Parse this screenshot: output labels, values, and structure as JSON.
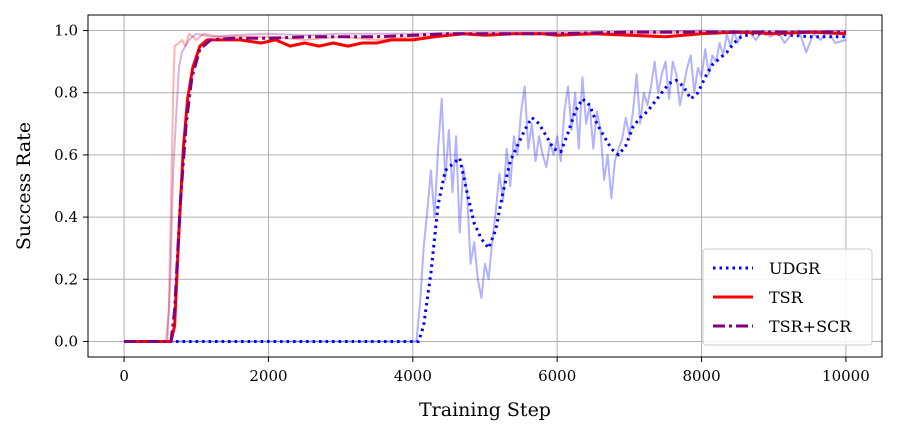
{
  "chart_data": {
    "type": "line",
    "title": "",
    "xlabel": "Training Step",
    "ylabel": "Success Rate",
    "xlim": [
      -500,
      10500
    ],
    "ylim": [
      -0.05,
      1.05
    ],
    "xticks": [
      0,
      2000,
      4000,
      6000,
      8000,
      10000
    ],
    "xtick_labels": [
      "0",
      "2000",
      "4000",
      "6000",
      "8000",
      "10000"
    ],
    "yticks": [
      0.0,
      0.2,
      0.4,
      0.6,
      0.8,
      1.0
    ],
    "ytick_labels": [
      "0.0",
      "0.2",
      "0.4",
      "0.6",
      "0.8",
      "1.0"
    ],
    "grid": true,
    "legend_position": "lower-right",
    "series": [
      {
        "name": "UDGR",
        "color": "#0000ff",
        "style": "dotted",
        "smoothed": [
          [
            0,
            0
          ],
          [
            4000,
            0
          ],
          [
            4080,
            0
          ],
          [
            4150,
            0.05
          ],
          [
            4250,
            0.22
          ],
          [
            4350,
            0.44
          ],
          [
            4450,
            0.55
          ],
          [
            4550,
            0.57
          ],
          [
            4650,
            0.59
          ],
          [
            4750,
            0.48
          ],
          [
            4850,
            0.38
          ],
          [
            4950,
            0.33
          ],
          [
            5050,
            0.3
          ],
          [
            5150,
            0.36
          ],
          [
            5250,
            0.48
          ],
          [
            5350,
            0.58
          ],
          [
            5450,
            0.63
          ],
          [
            5550,
            0.68
          ],
          [
            5650,
            0.72
          ],
          [
            5750,
            0.7
          ],
          [
            5850,
            0.66
          ],
          [
            5950,
            0.62
          ],
          [
            6050,
            0.61
          ],
          [
            6150,
            0.67
          ],
          [
            6250,
            0.74
          ],
          [
            6350,
            0.78
          ],
          [
            6450,
            0.76
          ],
          [
            6550,
            0.7
          ],
          [
            6650,
            0.66
          ],
          [
            6750,
            0.62
          ],
          [
            6850,
            0.6
          ],
          [
            6950,
            0.63
          ],
          [
            7050,
            0.69
          ],
          [
            7150,
            0.72
          ],
          [
            7250,
            0.74
          ],
          [
            7350,
            0.77
          ],
          [
            7450,
            0.8
          ],
          [
            7550,
            0.83
          ],
          [
            7650,
            0.84
          ],
          [
            7750,
            0.82
          ],
          [
            7850,
            0.78
          ],
          [
            7950,
            0.8
          ],
          [
            8050,
            0.85
          ],
          [
            8150,
            0.89
          ],
          [
            8250,
            0.91
          ],
          [
            8350,
            0.93
          ],
          [
            8450,
            0.96
          ],
          [
            8550,
            0.98
          ],
          [
            8700,
            0.99
          ],
          [
            9000,
            0.99
          ],
          [
            9500,
            0.98
          ],
          [
            10000,
            0.98
          ]
        ],
        "raw": [
          [
            0,
            0
          ],
          [
            4050,
            0
          ],
          [
            4100,
            0.12
          ],
          [
            4150,
            0.3
          ],
          [
            4200,
            0.42
          ],
          [
            4250,
            0.55
          ],
          [
            4300,
            0.4
          ],
          [
            4350,
            0.62
          ],
          [
            4400,
            0.78
          ],
          [
            4450,
            0.52
          ],
          [
            4500,
            0.68
          ],
          [
            4550,
            0.48
          ],
          [
            4600,
            0.66
          ],
          [
            4650,
            0.35
          ],
          [
            4700,
            0.56
          ],
          [
            4750,
            0.48
          ],
          [
            4800,
            0.25
          ],
          [
            4850,
            0.32
          ],
          [
            4900,
            0.2
          ],
          [
            4950,
            0.14
          ],
          [
            5000,
            0.25
          ],
          [
            5050,
            0.2
          ],
          [
            5100,
            0.32
          ],
          [
            5150,
            0.42
          ],
          [
            5200,
            0.54
          ],
          [
            5250,
            0.45
          ],
          [
            5300,
            0.62
          ],
          [
            5350,
            0.5
          ],
          [
            5400,
            0.66
          ],
          [
            5450,
            0.6
          ],
          [
            5500,
            0.74
          ],
          [
            5550,
            0.82
          ],
          [
            5600,
            0.62
          ],
          [
            5650,
            0.7
          ],
          [
            5700,
            0.58
          ],
          [
            5750,
            0.66
          ],
          [
            5800,
            0.6
          ],
          [
            5850,
            0.56
          ],
          [
            5900,
            0.64
          ],
          [
            5950,
            0.6
          ],
          [
            6000,
            0.66
          ],
          [
            6050,
            0.58
          ],
          [
            6100,
            0.74
          ],
          [
            6150,
            0.82
          ],
          [
            6200,
            0.68
          ],
          [
            6250,
            0.8
          ],
          [
            6300,
            0.62
          ],
          [
            6350,
            0.85
          ],
          [
            6400,
            0.7
          ],
          [
            6450,
            0.76
          ],
          [
            6500,
            0.62
          ],
          [
            6550,
            0.74
          ],
          [
            6600,
            0.68
          ],
          [
            6650,
            0.52
          ],
          [
            6700,
            0.6
          ],
          [
            6750,
            0.46
          ],
          [
            6800,
            0.58
          ],
          [
            6850,
            0.62
          ],
          [
            6900,
            0.65
          ],
          [
            6950,
            0.72
          ],
          [
            7000,
            0.66
          ],
          [
            7050,
            0.74
          ],
          [
            7100,
            0.86
          ],
          [
            7150,
            0.7
          ],
          [
            7200,
            0.8
          ],
          [
            7250,
            0.76
          ],
          [
            7300,
            0.82
          ],
          [
            7350,
            0.9
          ],
          [
            7400,
            0.8
          ],
          [
            7450,
            0.86
          ],
          [
            7500,
            0.9
          ],
          [
            7550,
            0.78
          ],
          [
            7600,
            0.9
          ],
          [
            7650,
            0.86
          ],
          [
            7700,
            0.76
          ],
          [
            7750,
            0.82
          ],
          [
            7800,
            0.88
          ],
          [
            7850,
            0.92
          ],
          [
            7900,
            0.8
          ],
          [
            7950,
            0.88
          ],
          [
            8000,
            0.85
          ],
          [
            8050,
            0.94
          ],
          [
            8100,
            0.86
          ],
          [
            8150,
            0.92
          ],
          [
            8200,
            0.9
          ],
          [
            8250,
            0.96
          ],
          [
            8300,
            0.92
          ],
          [
            8350,
            0.99
          ],
          [
            8400,
            0.95
          ],
          [
            8450,
            1.0
          ],
          [
            8500,
            0.96
          ],
          [
            8550,
            0.99
          ],
          [
            8650,
            1.0
          ],
          [
            8750,
            0.97
          ],
          [
            8850,
            1.0
          ],
          [
            8950,
            0.98
          ],
          [
            9050,
            1.0
          ],
          [
            9150,
            0.96
          ],
          [
            9250,
            0.99
          ],
          [
            9350,
            1.0
          ],
          [
            9450,
            0.93
          ],
          [
            9550,
            0.99
          ],
          [
            9650,
            0.97
          ],
          [
            9750,
            1.0
          ],
          [
            9850,
            0.96
          ],
          [
            10000,
            0.97
          ]
        ]
      },
      {
        "name": "TSR",
        "color": "#ff0000",
        "style": "solid",
        "smoothed": [
          [
            0,
            0
          ],
          [
            650,
            0
          ],
          [
            700,
            0.05
          ],
          [
            760,
            0.35
          ],
          [
            820,
            0.62
          ],
          [
            880,
            0.78
          ],
          [
            950,
            0.88
          ],
          [
            1050,
            0.95
          ],
          [
            1150,
            0.97
          ],
          [
            1300,
            0.97
          ],
          [
            1600,
            0.97
          ],
          [
            1900,
            0.96
          ],
          [
            2100,
            0.97
          ],
          [
            2300,
            0.95
          ],
          [
            2500,
            0.96
          ],
          [
            2700,
            0.95
          ],
          [
            2900,
            0.96
          ],
          [
            3100,
            0.95
          ],
          [
            3300,
            0.96
          ],
          [
            3500,
            0.96
          ],
          [
            3700,
            0.97
          ],
          [
            4000,
            0.97
          ],
          [
            4300,
            0.98
          ],
          [
            4700,
            0.99
          ],
          [
            5000,
            0.985
          ],
          [
            5400,
            0.99
          ],
          [
            5800,
            0.99
          ],
          [
            6000,
            0.985
          ],
          [
            6500,
            0.99
          ],
          [
            7000,
            0.985
          ],
          [
            7500,
            0.98
          ],
          [
            8000,
            0.99
          ],
          [
            8500,
            0.995
          ],
          [
            9000,
            0.99
          ],
          [
            9500,
            0.995
          ],
          [
            10000,
            0.99
          ]
        ],
        "raw": [
          [
            0,
            0
          ],
          [
            580,
            0
          ],
          [
            620,
            0.1
          ],
          [
            650,
            0.45
          ],
          [
            680,
            0.8
          ],
          [
            700,
            0.95
          ],
          [
            760,
            0.96
          ],
          [
            800,
            0.97
          ],
          [
            850,
            0.95
          ],
          [
            900,
            0.99
          ],
          [
            1000,
            0.97
          ],
          [
            1100,
            0.99
          ],
          [
            1300,
            0.98
          ],
          [
            1600,
            0.98
          ],
          [
            2000,
            0.98
          ],
          [
            2500,
            0.97
          ],
          [
            3000,
            0.98
          ],
          [
            3500,
            0.97
          ],
          [
            4000,
            0.98
          ],
          [
            5000,
            0.99
          ],
          [
            6000,
            0.99
          ],
          [
            7000,
            0.99
          ],
          [
            8000,
            0.995
          ],
          [
            9000,
            0.99
          ],
          [
            10000,
            0.995
          ]
        ]
      },
      {
        "name": "TSR+SCR",
        "color": "#800080",
        "style": "dashdot",
        "smoothed": [
          [
            0,
            0
          ],
          [
            650,
            0
          ],
          [
            700,
            0.1
          ],
          [
            780,
            0.45
          ],
          [
            860,
            0.7
          ],
          [
            940,
            0.85
          ],
          [
            1050,
            0.94
          ],
          [
            1200,
            0.97
          ],
          [
            1500,
            0.975
          ],
          [
            2000,
            0.975
          ],
          [
            2500,
            0.98
          ],
          [
            3000,
            0.98
          ],
          [
            3500,
            0.98
          ],
          [
            4000,
            0.985
          ],
          [
            4500,
            0.99
          ],
          [
            5000,
            0.99
          ],
          [
            6000,
            0.99
          ],
          [
            7000,
            0.995
          ],
          [
            8000,
            0.995
          ],
          [
            9000,
            0.995
          ],
          [
            10000,
            0.995
          ]
        ],
        "raw": [
          [
            0,
            0
          ],
          [
            600,
            0
          ],
          [
            640,
            0.2
          ],
          [
            680,
            0.55
          ],
          [
            720,
            0.72
          ],
          [
            760,
            0.88
          ],
          [
            800,
            0.93
          ],
          [
            900,
            0.97
          ],
          [
            1000,
            0.99
          ],
          [
            1200,
            0.98
          ],
          [
            1500,
            0.985
          ],
          [
            2000,
            0.99
          ],
          [
            2500,
            0.985
          ],
          [
            3000,
            0.99
          ],
          [
            4000,
            0.99
          ],
          [
            5000,
            0.995
          ],
          [
            6000,
            0.995
          ],
          [
            7000,
            0.995
          ],
          [
            8000,
            1.0
          ],
          [
            9000,
            0.995
          ],
          [
            10000,
            1.0
          ]
        ]
      }
    ]
  }
}
